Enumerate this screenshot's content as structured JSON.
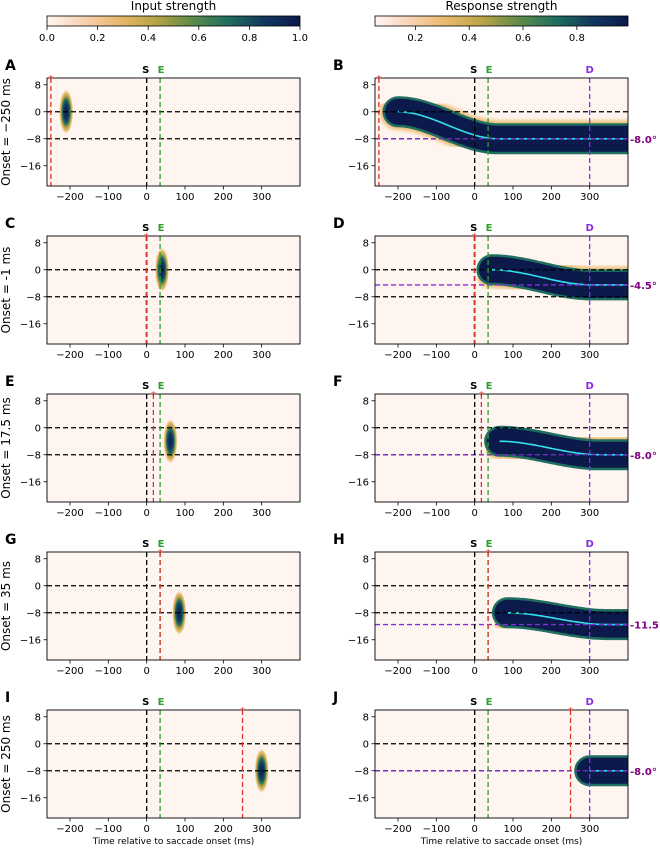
{
  "colorbars": [
    {
      "label": "Input strength",
      "ticks": [
        "0.0",
        "0.2",
        "0.4",
        "0.6",
        "0.8",
        "1.0"
      ],
      "tick_values": [
        0,
        0.2,
        0.4,
        0.6,
        0.8,
        1.0
      ],
      "min": 0,
      "max": 1
    },
    {
      "label": "Response strength",
      "ticks": [
        "0.2",
        "0.4",
        "0.6",
        "0.8"
      ],
      "tick_values": [
        0.2,
        0.4,
        0.6,
        0.8
      ],
      "min": 0.05,
      "max": 0.99
    }
  ],
  "colors": {
    "s_line": "#000000",
    "e_line": "#2ca02c",
    "star_line": "#e8302a",
    "d_line": "#8a2be2",
    "decoded": "#800080",
    "trajectory": "#33e0f0",
    "cmap": [
      "#fff5f0",
      "#f9d2b4",
      "#e8b86a",
      "#b7a346",
      "#5e8b4a",
      "#1f6e5f",
      "#14385f",
      "#0b1a4a"
    ]
  },
  "markers": {
    "s": "S",
    "e": "E",
    "d": "D",
    "star": "*"
  },
  "x_label": "Time relative to saccade onset (ms)",
  "chart_data": {
    "type": "heatmap",
    "x_range": [
      -260,
      400
    ],
    "y_range": [
      -22,
      10
    ],
    "x_ticks": [
      -200,
      -100,
      0,
      100,
      200,
      300
    ],
    "x_tick_labels": [
      "−200",
      "−100",
      "0",
      "100",
      "200",
      "300"
    ],
    "y_ticks": [
      8,
      0,
      -8,
      -16
    ],
    "y_tick_labels": [
      "8",
      "0",
      "−8",
      "−16"
    ],
    "saccade_onset_ms": 0,
    "saccade_end_ms": 35,
    "decode_time_ms": 300,
    "reference_positions_deg": [
      0,
      -8
    ],
    "rows": [
      {
        "row_label": "Onset = −250 ms",
        "onset_ms": -250,
        "input_panel": {
          "letter": "A",
          "blob_time_ms": -210,
          "blob_pos_deg": 0
        },
        "response_panel": {
          "letter": "B",
          "start_ms": -200,
          "start_pos_deg": 0,
          "end_pos_deg": -8,
          "decoded_label": "-8.0°",
          "decoded_deg": -8.0
        }
      },
      {
        "row_label": "Onset = -1 ms",
        "onset_ms": -1,
        "input_panel": {
          "letter": "C",
          "blob_time_ms": 40,
          "blob_pos_deg": 0
        },
        "response_panel": {
          "letter": "D",
          "start_ms": 45,
          "start_pos_deg": 0,
          "end_pos_deg": -4.5,
          "decoded_label": "-4.5°",
          "decoded_deg": -4.5
        }
      },
      {
        "row_label": "Onset = 17.5 ms",
        "onset_ms": 17.5,
        "input_panel": {
          "letter": "E",
          "blob_time_ms": 62,
          "blob_pos_deg": -4
        },
        "response_panel": {
          "letter": "F",
          "start_ms": 65,
          "start_pos_deg": -4,
          "end_pos_deg": -8,
          "decoded_label": "-8.0°",
          "decoded_deg": -8.0
        }
      },
      {
        "row_label": "Onset = 35 ms",
        "onset_ms": 35,
        "input_panel": {
          "letter": "G",
          "blob_time_ms": 85,
          "blob_pos_deg": -8
        },
        "response_panel": {
          "letter": "H",
          "start_ms": 85,
          "start_pos_deg": -8,
          "end_pos_deg": -11.5,
          "decoded_label": "-11.5°",
          "decoded_deg": -11.5
        }
      },
      {
        "row_label": "Onset = 250 ms",
        "onset_ms": 250,
        "input_panel": {
          "letter": "I",
          "blob_time_ms": 300,
          "blob_pos_deg": -8
        },
        "response_panel": {
          "letter": "J",
          "start_ms": 300,
          "start_pos_deg": -8,
          "end_pos_deg": -8,
          "decoded_label": "-8.0°",
          "decoded_deg": -8.0
        }
      }
    ]
  }
}
